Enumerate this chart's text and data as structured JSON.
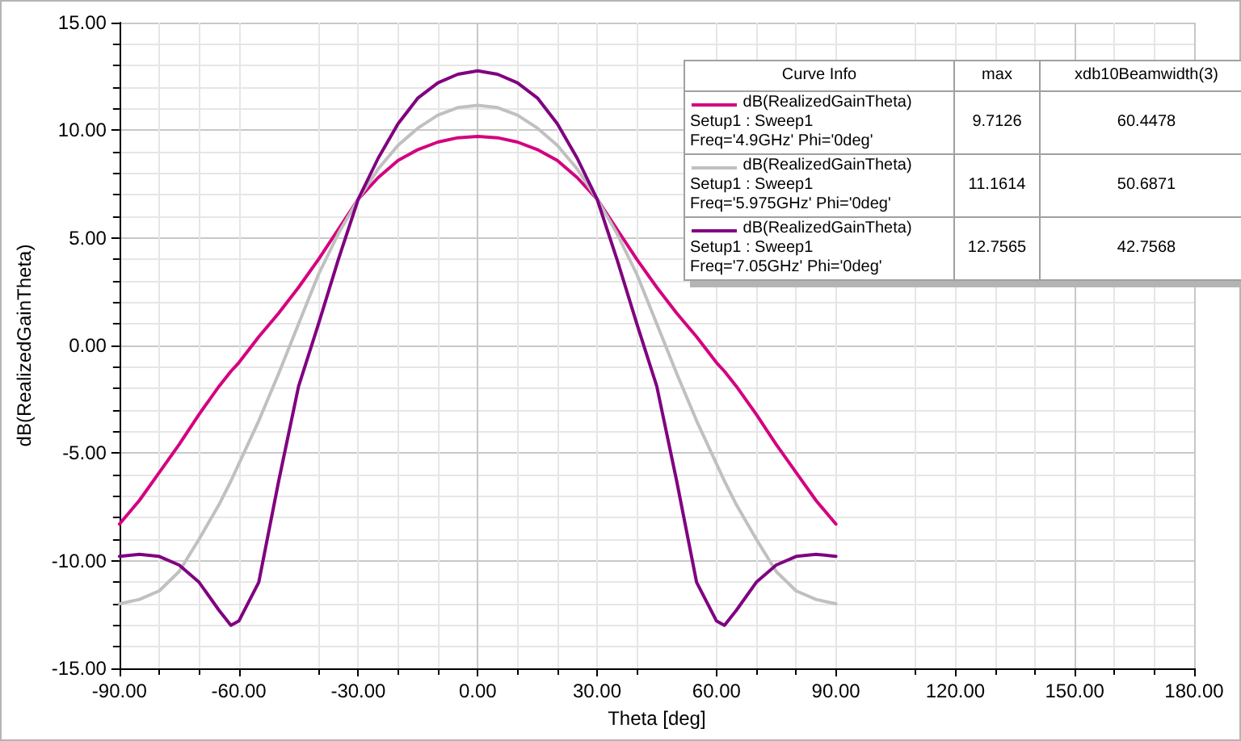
{
  "chart_data": {
    "type": "line",
    "xlabel": "Theta [deg]",
    "ylabel": "dB(RealizedGainTheta)",
    "x": [
      -90,
      -85,
      -80,
      -75,
      -70,
      -65,
      -62,
      -60,
      -55,
      -50,
      -45,
      -40,
      -35,
      -30,
      -25,
      -20,
      -15,
      -10,
      -5,
      0,
      5,
      10,
      15,
      20,
      25,
      30,
      35,
      40,
      45,
      50,
      55,
      60,
      62,
      65,
      70,
      75,
      80,
      85,
      90
    ],
    "series": [
      {
        "name": "dB(RealizedGainTheta)\nSetup1 : Sweep1\nFreq='4.9GHz' Phi='0deg'",
        "color": "#d4007f",
        "values": [
          -8.3,
          -7.2,
          -5.9,
          -4.6,
          -3.2,
          -1.9,
          -1.2,
          -0.8,
          0.4,
          1.5,
          2.7,
          4.0,
          5.4,
          6.8,
          7.8,
          8.6,
          9.1,
          9.45,
          9.65,
          9.71,
          9.65,
          9.45,
          9.1,
          8.6,
          7.8,
          6.8,
          5.4,
          4.0,
          2.7,
          1.5,
          0.4,
          -0.8,
          -1.2,
          -1.9,
          -3.2,
          -4.6,
          -5.9,
          -7.2,
          -8.3
        ]
      },
      {
        "name": "dB(RealizedGainTheta)\nSetup1 : Sweep1\nFreq='5.975GHz' Phi='0deg'",
        "color": "#c0c0c0",
        "values": [
          -12.0,
          -11.8,
          -11.4,
          -10.5,
          -9.0,
          -7.4,
          -6.3,
          -5.5,
          -3.5,
          -1.3,
          1.0,
          3.3,
          5.2,
          6.8,
          8.2,
          9.3,
          10.1,
          10.7,
          11.05,
          11.16,
          11.05,
          10.7,
          10.1,
          9.3,
          8.2,
          6.8,
          5.2,
          3.3,
          1.0,
          -1.3,
          -3.5,
          -5.5,
          -6.3,
          -7.4,
          -9.0,
          -10.5,
          -11.4,
          -11.8,
          -12.0
        ]
      },
      {
        "name": "dB(RealizedGainTheta)\nSetup1 : Sweep1\nFreq='7.05GHz' Phi='0deg'",
        "color": "#800080",
        "values": [
          -9.8,
          -9.7,
          -9.8,
          -10.2,
          -11.0,
          -12.3,
          -13.0,
          -12.8,
          -11.0,
          -6.3,
          -1.9,
          1.0,
          4.0,
          6.8,
          8.7,
          10.3,
          11.5,
          12.2,
          12.6,
          12.76,
          12.6,
          12.2,
          11.5,
          10.3,
          8.7,
          6.8,
          4.0,
          1.0,
          -1.9,
          -6.3,
          -11.0,
          -12.8,
          -13.0,
          -12.3,
          -11.0,
          -10.2,
          -9.8,
          -9.7,
          -9.8
        ]
      }
    ],
    "annotations": [
      "Curve Info",
      "max",
      "xdb10Beamwidth(3)",
      "9.7126",
      "60.4478",
      "11.1614",
      "50.6871",
      "12.7565",
      "42.7568"
    ],
    "xlim": [
      -90,
      180
    ],
    "xticks": [
      {
        "value": -90,
        "label": "-90.00"
      },
      {
        "value": -60,
        "label": "-60.00"
      },
      {
        "value": -30,
        "label": "-30.00"
      },
      {
        "value": 0,
        "label": "0.00"
      },
      {
        "value": 30,
        "label": "30.00"
      },
      {
        "value": 60,
        "label": "60.00"
      },
      {
        "value": 90,
        "label": "90.00"
      },
      {
        "value": 120,
        "label": "120.00"
      },
      {
        "value": 150,
        "label": "150.00"
      },
      {
        "value": 180,
        "label": "180.00"
      }
    ],
    "ylim": [
      -15,
      15
    ],
    "yticks": [
      {
        "value": -15,
        "label": "-15.00"
      },
      {
        "value": -10,
        "label": "-10.00"
      },
      {
        "value": -5,
        "label": "-5.00"
      },
      {
        "value": 0,
        "label": "0.00"
      },
      {
        "value": 5,
        "label": "5.00"
      },
      {
        "value": 10,
        "label": "10.00"
      },
      {
        "value": 15,
        "label": "15.00"
      }
    ],
    "grid": true,
    "legend": "top right",
    "marker": "none",
    "line_style": "solid"
  }
}
